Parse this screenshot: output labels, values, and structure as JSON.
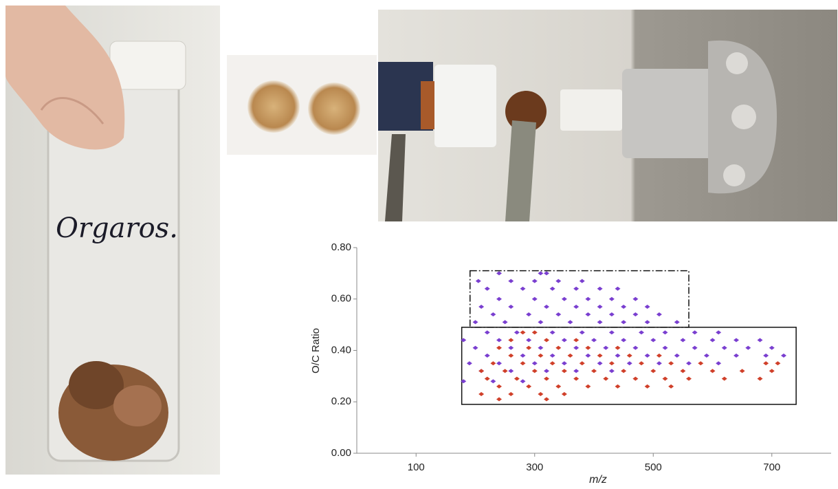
{
  "photo_text": [
    "Orgaros."
  ],
  "chart_data": {
    "type": "scatter",
    "x_label": "m/z",
    "y_label": "O/C Ratio",
    "xlim": [
      0,
      800
    ],
    "ylim": [
      0,
      0.8
    ],
    "xticks": [
      100,
      300,
      500,
      700
    ],
    "yticks": [
      {
        "value": 0,
        "label": "0.00"
      },
      {
        "value": 0.2,
        "label": "0.20"
      },
      {
        "value": 0.4,
        "label": "0.40"
      },
      {
        "value": 0.6,
        "label": "0.60"
      },
      {
        "value": 0.8,
        "label": "0.80"
      }
    ],
    "regions": [
      {
        "xlim": [
          191,
          560
        ],
        "ylim": [
          0.49,
          0.71
        ],
        "style": "dashdot"
      },
      {
        "xlim": [
          177,
          741
        ],
        "ylim": [
          0.19,
          0.49
        ],
        "style": "solid"
      }
    ],
    "series": [
      {
        "color": "#7a3fd0",
        "x": [
          240,
          310,
          320,
          205,
          260,
          300,
          340,
          380,
          220,
          280,
          330,
          370,
          410,
          440,
          240,
          300,
          350,
          390,
          430,
          470,
          210,
          260,
          320,
          370,
          410,
          450,
          490,
          230,
          290,
          340,
          390,
          430,
          470,
          510,
          200,
          250,
          310,
          360,
          410,
          450,
          490,
          540,
          220,
          270,
          330,
          380,
          430,
          480,
          520,
          570,
          610,
          180,
          240,
          290,
          350,
          400,
          450,
          500,
          550,
          600,
          640,
          680,
          200,
          260,
          310,
          370,
          420,
          470,
          520,
          570,
          620,
          660,
          700,
          220,
          280,
          330,
          390,
          440,
          490,
          540,
          590,
          640,
          690,
          720,
          190,
          240,
          300,
          350,
          410,
          460,
          510,
          560,
          610,
          210,
          260,
          320,
          370,
          430,
          180,
          230,
          280
        ],
        "y": [
          0.7,
          0.7,
          0.7,
          0.67,
          0.67,
          0.67,
          0.67,
          0.67,
          0.64,
          0.64,
          0.64,
          0.64,
          0.64,
          0.64,
          0.6,
          0.6,
          0.6,
          0.6,
          0.6,
          0.6,
          0.57,
          0.57,
          0.57,
          0.57,
          0.57,
          0.57,
          0.57,
          0.54,
          0.54,
          0.54,
          0.54,
          0.54,
          0.54,
          0.54,
          0.51,
          0.51,
          0.51,
          0.51,
          0.51,
          0.51,
          0.51,
          0.51,
          0.47,
          0.47,
          0.47,
          0.47,
          0.47,
          0.47,
          0.47,
          0.47,
          0.47,
          0.44,
          0.44,
          0.44,
          0.44,
          0.44,
          0.44,
          0.44,
          0.44,
          0.44,
          0.44,
          0.44,
          0.41,
          0.41,
          0.41,
          0.41,
          0.41,
          0.41,
          0.41,
          0.41,
          0.41,
          0.41,
          0.41,
          0.38,
          0.38,
          0.38,
          0.38,
          0.38,
          0.38,
          0.38,
          0.38,
          0.38,
          0.38,
          0.38,
          0.35,
          0.35,
          0.35,
          0.35,
          0.35,
          0.35,
          0.35,
          0.35,
          0.35,
          0.32,
          0.32,
          0.32,
          0.32,
          0.32,
          0.28,
          0.28,
          0.28
        ]
      },
      {
        "color": "#d0402a",
        "x": [
          280,
          300,
          260,
          320,
          370,
          240,
          290,
          340,
          390,
          440,
          260,
          310,
          360,
          410,
          460,
          510,
          230,
          280,
          330,
          380,
          430,
          480,
          530,
          580,
          690,
          710,
          210,
          250,
          300,
          350,
          400,
          450,
          500,
          550,
          600,
          650,
          700,
          220,
          270,
          320,
          370,
          420,
          470,
          520,
          560,
          620,
          680,
          240,
          290,
          340,
          390,
          440,
          490,
          530,
          210,
          260,
          310,
          350,
          240,
          320
        ],
        "y": [
          0.47,
          0.47,
          0.44,
          0.44,
          0.44,
          0.41,
          0.41,
          0.41,
          0.41,
          0.41,
          0.38,
          0.38,
          0.38,
          0.38,
          0.38,
          0.38,
          0.35,
          0.35,
          0.35,
          0.35,
          0.35,
          0.35,
          0.35,
          0.35,
          0.35,
          0.35,
          0.32,
          0.32,
          0.32,
          0.32,
          0.32,
          0.32,
          0.32,
          0.32,
          0.32,
          0.32,
          0.32,
          0.29,
          0.29,
          0.29,
          0.29,
          0.29,
          0.29,
          0.29,
          0.29,
          0.29,
          0.29,
          0.26,
          0.26,
          0.26,
          0.26,
          0.26,
          0.26,
          0.26,
          0.23,
          0.23,
          0.23,
          0.23,
          0.21,
          0.21
        ]
      }
    ]
  }
}
